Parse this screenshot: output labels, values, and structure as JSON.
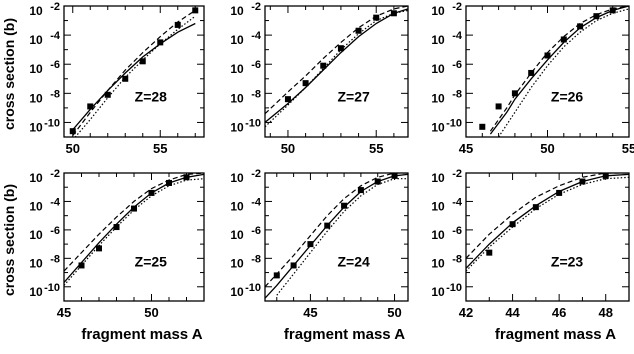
{
  "figure": {
    "ylabel": "cross section (b)",
    "xlabel": "fragment mass A"
  },
  "chart_data": [
    {
      "type": "scatter",
      "label": "Z=28",
      "xlim": [
        49.5,
        57.5
      ],
      "ylim": [
        -11,
        -2
      ],
      "log_y": true,
      "xticks": [
        50,
        55
      ],
      "ytick_labels": [
        {
          "base": "10",
          "exp": "-2",
          "v": -2
        },
        {
          "base": "10",
          "exp": "-4",
          "v": -4
        },
        {
          "base": "10",
          "exp": "-6",
          "v": -6
        },
        {
          "base": "10",
          "exp": "-8",
          "v": -8
        },
        {
          "base": "10",
          "exp": "-10",
          "v": -10
        }
      ],
      "series": [
        {
          "style": "markers",
          "x": [
            50,
            51,
            52,
            53,
            54,
            55,
            56,
            57
          ],
          "y": [
            -10.6,
            -8.9,
            -8.1,
            -7.0,
            -5.8,
            -4.5,
            -3.3,
            -2.3
          ]
        },
        {
          "style": "solid",
          "x": [
            50,
            51,
            52,
            53,
            54,
            55,
            56,
            57
          ],
          "y": [
            -10.5,
            -9.1,
            -7.8,
            -6.6,
            -5.5,
            -4.6,
            -3.8,
            -3.2
          ]
        },
        {
          "style": "dashed",
          "x": [
            50,
            51,
            52,
            53,
            54,
            55,
            56,
            57
          ],
          "y": [
            -10.9,
            -9.3,
            -7.8,
            -6.4,
            -5.2,
            -4.1,
            -3.1,
            -2.3
          ]
        },
        {
          "style": "dotted",
          "x": [
            50,
            51,
            52,
            53,
            54,
            55,
            56,
            57
          ],
          "y": [
            -11.2,
            -9.8,
            -8.3,
            -6.9,
            -5.7,
            -4.6,
            -3.6,
            -2.7
          ]
        }
      ]
    },
    {
      "type": "scatter",
      "label": "Z=27",
      "xlim": [
        48.7,
        56.8
      ],
      "ylim": [
        -11,
        -2
      ],
      "log_y": true,
      "xticks": [
        50,
        55
      ],
      "ytick_labels": [
        {
          "base": "10",
          "exp": "-2",
          "v": -2
        },
        {
          "base": "10",
          "exp": "-4",
          "v": -4
        },
        {
          "base": "10",
          "exp": "-6",
          "v": -6
        },
        {
          "base": "10",
          "exp": "-8",
          "v": -8
        },
        {
          "base": "10",
          "exp": "-10",
          "v": -10
        }
      ],
      "series": [
        {
          "style": "markers",
          "x": [
            50,
            51,
            52,
            53,
            54,
            55,
            56
          ],
          "y": [
            -8.4,
            -7.3,
            -6.1,
            -4.9,
            -3.7,
            -2.8,
            -2.5
          ]
        },
        {
          "style": "solid",
          "x": [
            48.7,
            50,
            51,
            52,
            53,
            54,
            55,
            56,
            56.8
          ],
          "y": [
            -10.0,
            -8.7,
            -7.6,
            -6.4,
            -5.2,
            -4.1,
            -3.2,
            -2.5,
            -2.2
          ]
        },
        {
          "style": "dashed",
          "x": [
            48.7,
            50,
            51,
            52,
            53,
            54,
            55,
            56,
            56.8
          ],
          "y": [
            -9.4,
            -7.9,
            -6.8,
            -5.6,
            -4.5,
            -3.5,
            -2.7,
            -2.2,
            -2.0
          ]
        },
        {
          "style": "dotted",
          "x": [
            48.7,
            50,
            51,
            52,
            53,
            54,
            55,
            56,
            56.8
          ],
          "y": [
            -10.3,
            -8.8,
            -7.6,
            -6.3,
            -5.0,
            -3.9,
            -3.0,
            -2.5,
            -2.3
          ]
        }
      ]
    },
    {
      "type": "scatter",
      "label": "Z=26",
      "xlim": [
        45,
        55
      ],
      "ylim": [
        -11,
        -2
      ],
      "log_y": true,
      "xticks": [
        45,
        50,
        55
      ],
      "ytick_labels": [
        {
          "base": "10",
          "exp": "-2",
          "v": -2
        },
        {
          "base": "10",
          "exp": "-4",
          "v": -4
        },
        {
          "base": "10",
          "exp": "-6",
          "v": -6
        },
        {
          "base": "10",
          "exp": "-8",
          "v": -8
        },
        {
          "base": "10",
          "exp": "-10",
          "v": -10
        }
      ],
      "series": [
        {
          "style": "markers",
          "x": [
            46,
            47,
            48,
            49,
            50,
            51,
            52,
            53,
            54
          ],
          "y": [
            -10.3,
            -8.9,
            -8.0,
            -6.6,
            -5.4,
            -4.3,
            -3.4,
            -2.7,
            -2.3
          ]
        },
        {
          "style": "solid",
          "x": [
            46.5,
            47.5,
            48,
            49,
            50,
            51,
            52,
            53,
            54,
            55
          ],
          "y": [
            -10.8,
            -9.3,
            -8.4,
            -7.0,
            -5.7,
            -4.5,
            -3.5,
            -2.8,
            -2.3,
            -2.0
          ]
        },
        {
          "style": "dashed",
          "x": [
            46.5,
            47.5,
            48,
            49,
            50,
            51,
            52,
            53,
            54,
            55
          ],
          "y": [
            -10.6,
            -9.0,
            -8.1,
            -6.6,
            -5.2,
            -4.1,
            -3.2,
            -2.6,
            -2.2,
            -2.0
          ]
        },
        {
          "style": "dotted",
          "x": [
            47,
            48,
            49,
            50,
            51,
            52,
            53,
            54,
            55
          ],
          "y": [
            -11.0,
            -9.3,
            -7.6,
            -6.1,
            -4.8,
            -3.8,
            -3.0,
            -2.5,
            -2.2
          ]
        }
      ]
    },
    {
      "type": "scatter",
      "label": "Z=25",
      "xlim": [
        45,
        53
      ],
      "ylim": [
        -11,
        -2
      ],
      "log_y": true,
      "xticks": [
        45,
        50
      ],
      "xlabel": "fragment mass A",
      "ytick_labels": [
        {
          "base": "10",
          "exp": "-2",
          "v": -2
        },
        {
          "base": "10",
          "exp": "-4",
          "v": -4
        },
        {
          "base": "10",
          "exp": "-6",
          "v": -6
        },
        {
          "base": "10",
          "exp": "-8",
          "v": -8
        },
        {
          "base": "10",
          "exp": "-10",
          "v": -10
        }
      ],
      "series": [
        {
          "style": "markers",
          "x": [
            46,
            47,
            48,
            49,
            50,
            51,
            52
          ],
          "y": [
            -8.5,
            -7.3,
            -5.8,
            -4.5,
            -3.4,
            -2.7,
            -2.3
          ]
        },
        {
          "style": "solid",
          "x": [
            45,
            46,
            47,
            48,
            49,
            50,
            51,
            52,
            53
          ],
          "y": [
            -9.7,
            -8.3,
            -6.9,
            -5.6,
            -4.4,
            -3.4,
            -2.7,
            -2.3,
            -2.1
          ]
        },
        {
          "style": "dashed",
          "x": [
            45,
            46,
            47,
            48,
            49,
            50,
            51,
            52,
            53
          ],
          "y": [
            -8.9,
            -7.6,
            -6.3,
            -5.1,
            -4.0,
            -3.1,
            -2.5,
            -2.1,
            -2.0
          ]
        },
        {
          "style": "dotted",
          "x": [
            45,
            46,
            47,
            48,
            49,
            50,
            51,
            52,
            53
          ],
          "y": [
            -9.9,
            -8.5,
            -7.1,
            -5.8,
            -4.6,
            -3.6,
            -2.9,
            -2.5,
            -2.4
          ]
        }
      ]
    },
    {
      "type": "scatter",
      "label": "Z=24",
      "xlim": [
        42.3,
        50.8
      ],
      "ylim": [
        -11,
        -2
      ],
      "log_y": true,
      "xticks": [
        45,
        50
      ],
      "xlabel": "fragment mass A",
      "ytick_labels": [
        {
          "base": "10",
          "exp": "-2",
          "v": -2
        },
        {
          "base": "10",
          "exp": "-4",
          "v": -4
        },
        {
          "base": "10",
          "exp": "-6",
          "v": -6
        },
        {
          "base": "10",
          "exp": "-8",
          "v": -8
        },
        {
          "base": "10",
          "exp": "-10",
          "v": -10
        }
      ],
      "series": [
        {
          "style": "markers",
          "x": [
            43,
            44,
            45,
            46,
            47,
            48,
            49,
            50
          ],
          "y": [
            -9.2,
            -8.5,
            -7.0,
            -5.7,
            -4.3,
            -3.2,
            -2.6,
            -2.2
          ]
        },
        {
          "style": "solid",
          "x": [
            42.3,
            43,
            44,
            45,
            46,
            47,
            48,
            49,
            50,
            50.8
          ],
          "y": [
            -10.8,
            -9.9,
            -8.5,
            -7.1,
            -5.7,
            -4.4,
            -3.3,
            -2.6,
            -2.2,
            -2.1
          ]
        },
        {
          "style": "dashed",
          "x": [
            42.3,
            43,
            44,
            45,
            46,
            47,
            48,
            49,
            50,
            50.8
          ],
          "y": [
            -10.0,
            -9.1,
            -7.8,
            -6.4,
            -5.0,
            -3.8,
            -2.9,
            -2.3,
            -2.0,
            -2.0
          ]
        },
        {
          "style": "dotted",
          "x": [
            43,
            44,
            45,
            46,
            47,
            48,
            49,
            50,
            50.8
          ],
          "y": [
            -10.6,
            -9.1,
            -7.6,
            -6.1,
            -4.7,
            -3.6,
            -2.8,
            -2.4,
            -2.4
          ]
        }
      ]
    },
    {
      "type": "scatter",
      "label": "Z=23",
      "xlim": [
        42,
        49
      ],
      "ylim": [
        -11,
        -2
      ],
      "log_y": true,
      "xticks": [
        42,
        44,
        46,
        48
      ],
      "xlabel": "fragment mass A",
      "ytick_labels": [
        {
          "base": "10",
          "exp": "-2",
          "v": -2
        },
        {
          "base": "10",
          "exp": "-4",
          "v": -4
        },
        {
          "base": "10",
          "exp": "-6",
          "v": -6
        },
        {
          "base": "10",
          "exp": "-8",
          "v": -8
        },
        {
          "base": "10",
          "exp": "-10",
          "v": -10
        }
      ],
      "series": [
        {
          "style": "markers",
          "x": [
            43,
            44,
            45,
            46,
            47,
            48
          ],
          "y": [
            -7.6,
            -5.6,
            -4.4,
            -3.4,
            -2.6,
            -2.2
          ]
        },
        {
          "style": "solid",
          "x": [
            42,
            43,
            44,
            45,
            46,
            47,
            48,
            49
          ],
          "y": [
            -8.7,
            -7.0,
            -5.5,
            -4.3,
            -3.3,
            -2.6,
            -2.2,
            -2.1
          ]
        },
        {
          "style": "dashed",
          "x": [
            42,
            43,
            44,
            45,
            46,
            47,
            48,
            49
          ],
          "y": [
            -8.0,
            -6.3,
            -4.9,
            -3.7,
            -2.9,
            -2.3,
            -2.0,
            -2.0
          ]
        },
        {
          "style": "dotted",
          "x": [
            42,
            43,
            44,
            45,
            46,
            47,
            48,
            49
          ],
          "y": [
            -8.9,
            -7.2,
            -5.8,
            -4.5,
            -3.5,
            -2.8,
            -2.4,
            -2.3
          ]
        }
      ]
    }
  ]
}
